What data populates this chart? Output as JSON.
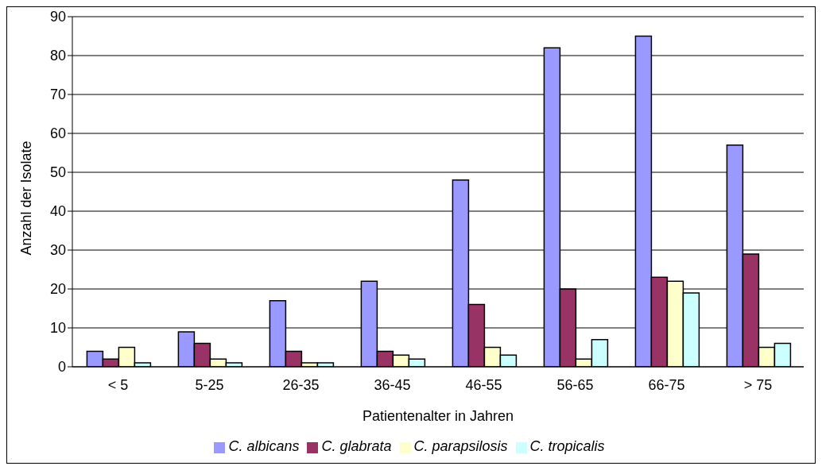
{
  "chart_data": {
    "type": "bar",
    "xlabel": "Patientenalter in Jahren",
    "ylabel": "Anzahl der Isolate",
    "categories": [
      "< 5",
      "5-25",
      "26-35",
      "36-45",
      "46-55",
      "56-65",
      "66-75",
      "> 75"
    ],
    "series": [
      {
        "name": "C. albicans",
        "color": "#9999ff",
        "values": [
          4,
          9,
          17,
          22,
          48,
          82,
          85,
          57
        ]
      },
      {
        "name": "C. glabrata",
        "color": "#993366",
        "values": [
          2,
          6,
          4,
          4,
          16,
          20,
          23,
          29
        ]
      },
      {
        "name": "C. parapsilosis",
        "color": "#ffffcc",
        "values": [
          5,
          2,
          1,
          3,
          5,
          2,
          22,
          5
        ]
      },
      {
        "name": "C. tropicalis",
        "color": "#ccffff",
        "values": [
          1,
          1,
          1,
          2,
          3,
          7,
          19,
          6
        ]
      }
    ],
    "ylim": [
      0,
      90
    ],
    "yticks": [
      0,
      10,
      20,
      30,
      40,
      50,
      60,
      70,
      80,
      90
    ],
    "grid": "y",
    "legend": "bottom"
  }
}
